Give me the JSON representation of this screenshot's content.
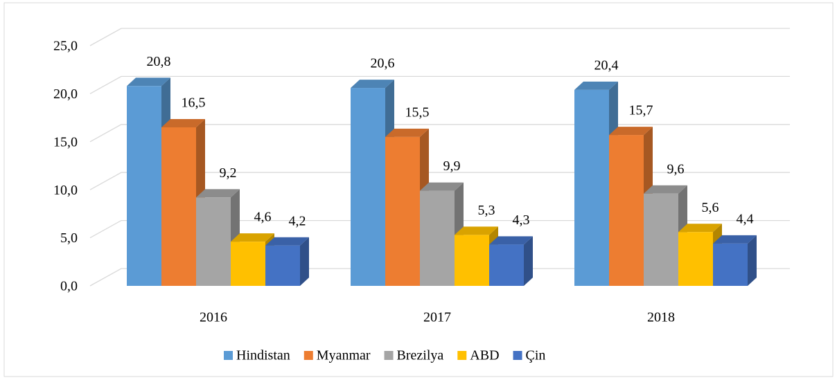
{
  "chart_data": {
    "type": "bar3d",
    "categories": [
      "2016",
      "2017",
      "2018"
    ],
    "series": [
      {
        "name": "Hindistan",
        "color": "#5b9bd5",
        "values": [
          20.8,
          20.6,
          20.4
        ],
        "value_labels": [
          "20,8",
          "20,6",
          "20,4"
        ]
      },
      {
        "name": "Myanmar",
        "color": "#ed7d31",
        "values": [
          16.5,
          15.5,
          15.7
        ],
        "value_labels": [
          "16,5",
          "15,5",
          "15,7"
        ]
      },
      {
        "name": "Brezilya",
        "color": "#a5a5a5",
        "values": [
          9.2,
          9.9,
          9.6
        ],
        "value_labels": [
          "9,2",
          "9,9",
          "9,6"
        ]
      },
      {
        "name": "ABD",
        "color": "#ffc000",
        "values": [
          4.6,
          5.3,
          5.6
        ],
        "value_labels": [
          "4,6",
          "5,3",
          "5,6"
        ]
      },
      {
        "name": "Çin",
        "color": "#4472c4",
        "values": [
          4.2,
          4.3,
          4.4
        ],
        "value_labels": [
          "4,2",
          "4,3",
          "4,4"
        ]
      }
    ],
    "ylim": [
      0,
      25
    ],
    "yticks": [
      {
        "value": 0,
        "label": "0,0"
      },
      {
        "value": 5,
        "label": "5,0"
      },
      {
        "value": 10,
        "label": "10,0"
      },
      {
        "value": 15,
        "label": "15,0"
      },
      {
        "value": 20,
        "label": "20,0"
      },
      {
        "value": 25,
        "label": "25,0"
      }
    ],
    "grid": true,
    "legend": "bottom"
  }
}
